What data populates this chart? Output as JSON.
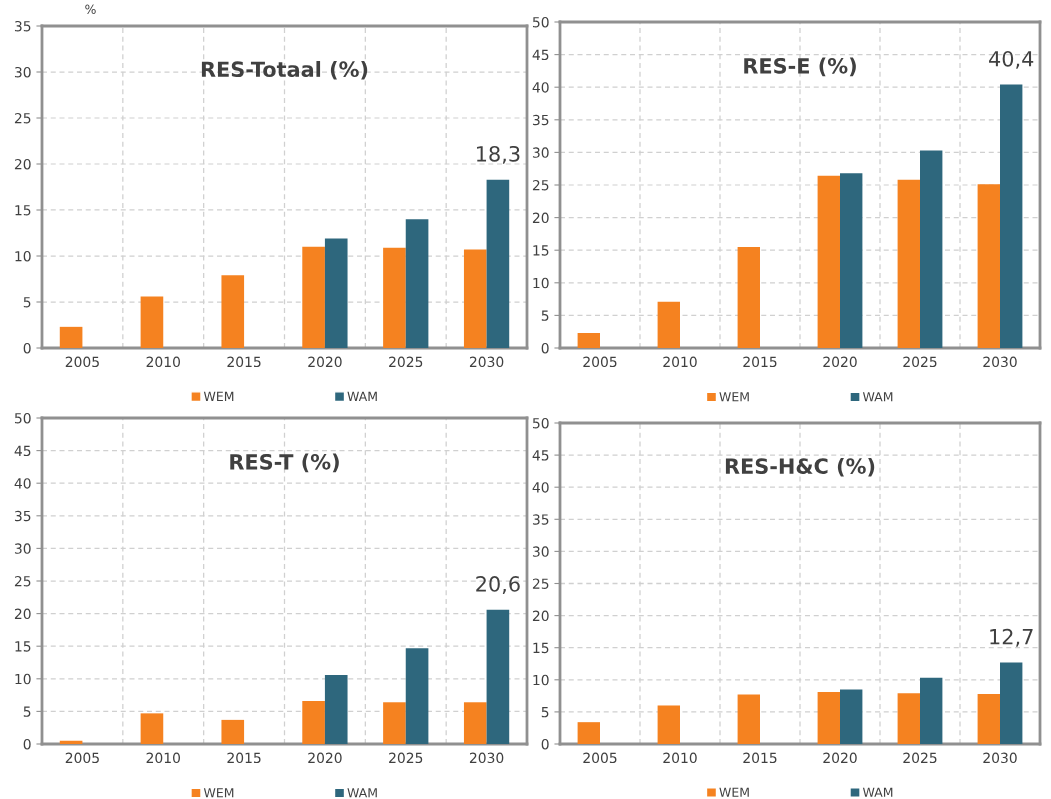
{
  "chart_data": [
    {
      "type": "bar",
      "title": "RES-Totaal (%)",
      "ylabel": "%",
      "categories": [
        "2005",
        "2010",
        "2015",
        "2020",
        "2025",
        "2030"
      ],
      "series": [
        {
          "name": "WEM",
          "color": "#f58220",
          "values": [
            2.3,
            5.6,
            7.9,
            11.0,
            10.9,
            10.7
          ]
        },
        {
          "name": "WAM",
          "color": "#2e677d",
          "values": [
            null,
            null,
            null,
            11.9,
            14.0,
            18.3
          ]
        }
      ],
      "ylim": [
        0,
        35
      ],
      "yticks": [
        0,
        5,
        10,
        15,
        20,
        25,
        30,
        35
      ],
      "grid": true,
      "legend": "bottom",
      "annotations": [
        {
          "text": "18,3",
          "x": "2030",
          "y": 18.3
        }
      ]
    },
    {
      "type": "bar",
      "title": "RES-E (%)",
      "categories": [
        "2005",
        "2010",
        "2015",
        "2020",
        "2025",
        "2030"
      ],
      "series": [
        {
          "name": "WEM",
          "color": "#f58220",
          "values": [
            2.3,
            7.1,
            15.5,
            26.4,
            25.8,
            25.1
          ]
        },
        {
          "name": "WAM",
          "color": "#2e677d",
          "values": [
            null,
            null,
            null,
            26.8,
            30.3,
            40.4
          ]
        }
      ],
      "ylim": [
        0,
        50
      ],
      "yticks": [
        0,
        5,
        10,
        15,
        20,
        25,
        30,
        35,
        40,
        45,
        50
      ],
      "grid": true,
      "legend": "bottom",
      "annotations": [
        {
          "text": "40,4",
          "x": "2030",
          "y": 40.4
        }
      ]
    },
    {
      "type": "bar",
      "title": "RES-T (%)",
      "categories": [
        "2005",
        "2010",
        "2015",
        "2020",
        "2025",
        "2030"
      ],
      "series": [
        {
          "name": "WEM",
          "color": "#f58220",
          "values": [
            0.5,
            4.7,
            3.7,
            6.6,
            6.4,
            6.4
          ]
        },
        {
          "name": "WAM",
          "color": "#2e677d",
          "values": [
            null,
            null,
            null,
            10.6,
            14.7,
            20.6
          ]
        }
      ],
      "ylim": [
        0,
        50
      ],
      "yticks": [
        0,
        5,
        10,
        15,
        20,
        25,
        30,
        35,
        40,
        45,
        50
      ],
      "grid": true,
      "legend": "bottom",
      "annotations": [
        {
          "text": "20,6",
          "x": "2030",
          "y": 20.6
        }
      ]
    },
    {
      "type": "bar",
      "title": "RES-H&C (%)",
      "categories": [
        "2005",
        "2010",
        "2015",
        "2020",
        "2025",
        "2030"
      ],
      "series": [
        {
          "name": "WEM",
          "color": "#f58220",
          "values": [
            3.4,
            6.0,
            7.7,
            8.1,
            7.9,
            7.8
          ]
        },
        {
          "name": "WAM",
          "color": "#2e677d",
          "values": [
            null,
            null,
            null,
            8.5,
            10.3,
            12.7
          ]
        }
      ],
      "ylim": [
        0,
        50
      ],
      "yticks": [
        0,
        5,
        10,
        15,
        20,
        25,
        30,
        35,
        40,
        45,
        50
      ],
      "grid": true,
      "legend": "bottom",
      "annotations": [
        {
          "text": "12,7",
          "x": "2030",
          "y": 12.7
        }
      ]
    }
  ]
}
